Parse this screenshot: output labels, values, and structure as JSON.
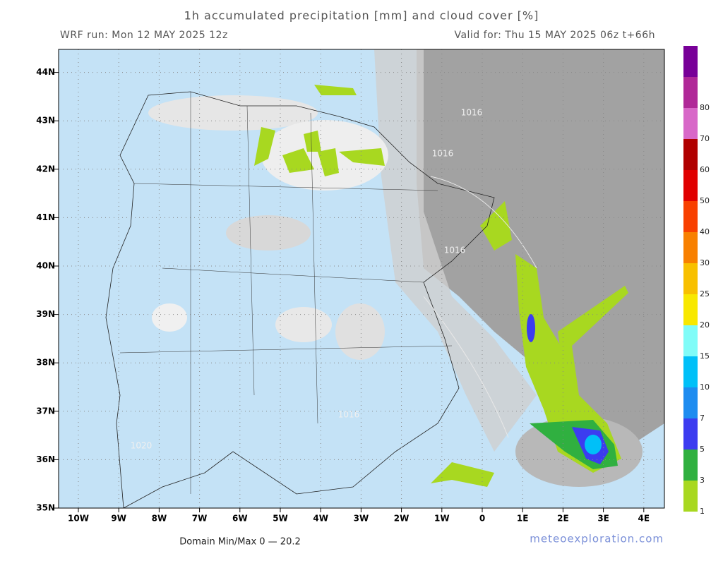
{
  "header": {
    "title": "1h accumulated precipitation [mm] and cloud cover [%]",
    "run": "WRF run: Mon 12 MAY 2025 12z",
    "valid": "Valid for: Thu 15 MAY 2025 06z  t+66h"
  },
  "map": {
    "lat_labels": [
      "35N",
      "36N",
      "37N",
      "38N",
      "39N",
      "40N",
      "41N",
      "42N",
      "43N",
      "44N"
    ],
    "lon_labels": [
      "10W",
      "9W",
      "8W",
      "7W",
      "6W",
      "5W",
      "4W",
      "3W",
      "2W",
      "1W",
      "0",
      "1E",
      "2E",
      "3E",
      "4E"
    ],
    "isobar_labels": [
      "1016",
      "1016",
      "1016",
      "1016",
      "1020"
    ]
  },
  "colorbar": {
    "labels": [
      "1",
      "3",
      "5",
      "7",
      "10",
      "15",
      "20",
      "25",
      "30",
      "40",
      "50",
      "60",
      "70",
      "80"
    ],
    "colors": [
      "#a8d820",
      "#30b040",
      "#3c3cf0",
      "#1e8cf0",
      "#00c0f8",
      "#80fcf8",
      "#f8e800",
      "#f8c000",
      "#f88000",
      "#f84000",
      "#e00000",
      "#b00000",
      "#d868c8",
      "#b02898",
      "#780098"
    ]
  },
  "footer": {
    "minmax": "Domain Min/Max 0 — 20.2",
    "credit": "meteoexploration.com"
  }
}
